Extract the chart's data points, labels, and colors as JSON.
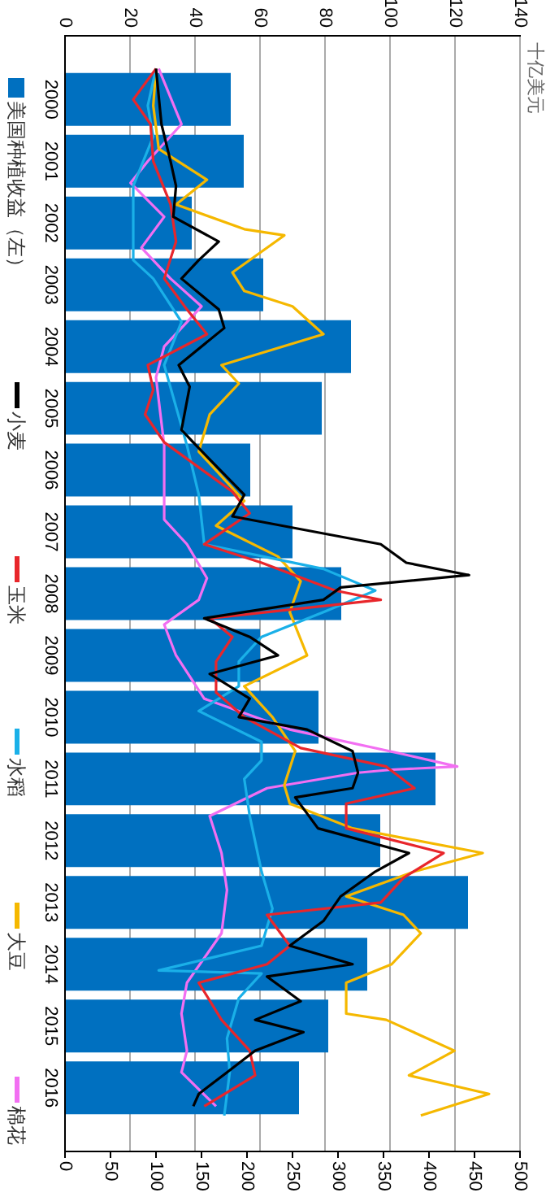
{
  "chart_data": {
    "type": "bar",
    "orientation": "horizontal",
    "title": "十亿美元",
    "x": [
      2000,
      2001,
      2002,
      2003,
      2004,
      2005,
      2006,
      2007,
      2008,
      2009,
      2010,
      2011,
      2012,
      2013,
      2014,
      2015,
      2016
    ],
    "series": [
      {
        "name": "美国种植收益（左）",
        "color": "#0070c0",
        "values": [
          51,
          55,
          39,
          61,
          88,
          79,
          57,
          70,
          85,
          60,
          78,
          114,
          97,
          124,
          93,
          81,
          72
        ]
      },
      {
        "name": "小麦",
        "type": "line",
        "axis": "x2",
        "color": "#000000",
        "x": [
          1999.5,
          2000.4,
          2001.0,
          2001.4,
          2001.9,
          2002.3,
          2002.6,
          2002.9,
          2003.4,
          2003.7,
          2004.3,
          2004.65,
          2005.35,
          2005.6,
          2006.4,
          2006.75,
          2007.2,
          2007.5,
          2007.7,
          2007.9,
          2008.1,
          2008.4,
          2008.7,
          2009.0,
          2009.3,
          2009.7,
          2010.0,
          2010.2,
          2010.55,
          2010.9,
          2011.15,
          2011.3,
          2011.8,
          2012.2,
          2012.5,
          2012.9,
          2013.3,
          2013.7,
          2014.0,
          2014.2,
          2014.6,
          2014.9,
          2015.1,
          2015.4,
          2015.75,
          2016.1,
          2016.3
        ],
        "values": [
          100,
          106,
          116,
          122,
          119,
          169,
          147,
          128,
          169,
          175,
          125,
          137,
          128,
          144,
          197,
          184,
          347,
          375,
          444,
          303,
          284,
          153,
          203,
          234,
          159,
          203,
          191,
          266,
          316,
          322,
          316,
          253,
          278,
          378,
          341,
          303,
          284,
          247,
          316,
          222,
          259,
          209,
          262,
          209,
          178,
          147,
          141
        ]
      },
      {
        "name": "玉米",
        "type": "line",
        "axis": "x2",
        "color": "#e8262b",
        "x": [
          1999.5,
          2000.0,
          2000.4,
          2001.0,
          2001.7,
          2002.3,
          2002.9,
          2003.4,
          2003.8,
          2004.3,
          2004.7,
          2005.1,
          2005.55,
          2006.35,
          2006.7,
          2007.2,
          2007.5,
          2007.95,
          2008.1,
          2008.4,
          2008.7,
          2009.1,
          2009.6,
          2010.0,
          2010.5,
          2010.8,
          2011.15,
          2011.4,
          2011.8,
          2012.2,
          2012.6,
          2013.0,
          2013.2,
          2013.7,
          2014.0,
          2014.3,
          2014.9,
          2015.4,
          2015.8,
          2016.3
        ],
        "values": [
          100,
          75,
          94,
          97,
          116,
          122,
          109,
          134,
          156,
          91,
          97,
          88,
          109,
          184,
          203,
          153,
          216,
          297,
          347,
          159,
          184,
          166,
          166,
          197,
          259,
          353,
          384,
          309,
          309,
          416,
          372,
          347,
          222,
          247,
          222,
          147,
          172,
          203,
          209,
          153
        ]
      },
      {
        "name": "水稻",
        "type": "line",
        "axis": "x2",
        "color": "#1ab0e8",
        "x": [
          1999.5,
          2000.1,
          2000.6,
          2001.4,
          2002.6,
          2002.9,
          2003.6,
          2004.3,
          2005.6,
          2006.4,
          2007.2,
          2007.6,
          2007.95,
          2008.3,
          2008.7,
          2009.1,
          2009.5,
          2009.9,
          2010.4,
          2010.7,
          2011.0,
          2011.6,
          2012.5,
          2013.1,
          2013.7,
          2014.1,
          2014.15,
          2014.55,
          2015.2,
          2015.75,
          2016.45
        ],
        "values": [
          100,
          91,
          97,
          75,
          75,
          97,
          128,
          109,
          134,
          147,
          153,
          284,
          341,
          284,
          216,
          191,
          191,
          147,
          216,
          216,
          197,
          203,
          216,
          228,
          216,
          103,
          216,
          191,
          178,
          181,
          175
        ]
      },
      {
        "name": "大豆",
        "type": "line",
        "axis": "x2",
        "color": "#f5b800",
        "x": [
          1999.5,
          2000.1,
          2000.8,
          2001.3,
          2001.7,
          2002.1,
          2002.2,
          2002.8,
          2003.1,
          2003.35,
          2003.8,
          2004.3,
          2004.6,
          2005.1,
          2005.7,
          2006.5,
          2006.9,
          2007.4,
          2007.8,
          2008.3,
          2009.0,
          2009.5,
          2010.0,
          2010.55,
          2011.1,
          2011.4,
          2011.8,
          2012.2,
          2012.5,
          2012.9,
          2013.2,
          2013.5,
          2014.0,
          2014.3,
          2014.8,
          2014.9,
          2015.4,
          2015.8,
          2016.1,
          2016.45
        ],
        "values": [
          100,
          97,
          103,
          156,
          122,
          197,
          241,
          184,
          197,
          250,
          284,
          172,
          191,
          159,
          147,
          197,
          166,
          234,
          259,
          247,
          266,
          197,
          228,
          253,
          241,
          247,
          316,
          459,
          384,
          309,
          372,
          391,
          359,
          309,
          309,
          353,
          428,
          378,
          466,
          391
        ]
      },
      {
        "name": "棉花",
        "type": "line",
        "axis": "x2",
        "color": "#f26ff2",
        "x": [
          1999.5,
          2000.4,
          2001.0,
          2001.35,
          2001.9,
          2002.4,
          2002.9,
          2003.35,
          2004.0,
          2004.5,
          2005.6,
          2006.8,
          2007.2,
          2007.75,
          2008.1,
          2008.5,
          2009.0,
          2009.7,
          2010.2,
          2010.6,
          2010.8,
          2010.85,
          2010.9,
          2011.15,
          2011.6,
          2012.2,
          2012.8,
          2013.5,
          2014.3,
          2014.8,
          2015.4,
          2015.75,
          2016.3
        ],
        "values": [
          103,
          128,
          91,
          72,
          109,
          84,
          116,
          150,
          109,
          100,
          109,
          109,
          134,
          156,
          147,
          109,
          122,
          153,
          247,
          372,
          431,
          359,
          322,
          222,
          159,
          172,
          178,
          172,
          134,
          128,
          134,
          128,
          166
        ]
      }
    ],
    "ylim": [
      2016.5,
      1999.5
    ],
    "yticks": [
      2000,
      2001,
      2002,
      2003,
      2004,
      2005,
      2006,
      2007,
      2008,
      2009,
      2010,
      2011,
      2012,
      2013,
      2014,
      2015,
      2016
    ],
    "xlim": [
      0,
      140
    ],
    "xticks": [
      0,
      20,
      40,
      60,
      80,
      100,
      120,
      140
    ],
    "x2lim": [
      0,
      500
    ],
    "x2ticks": [
      0,
      50,
      100,
      150,
      200,
      250,
      300,
      350,
      400,
      450,
      500
    ],
    "grid": "x",
    "legend": "left",
    "marker": "none",
    "line_style": "solid"
  }
}
